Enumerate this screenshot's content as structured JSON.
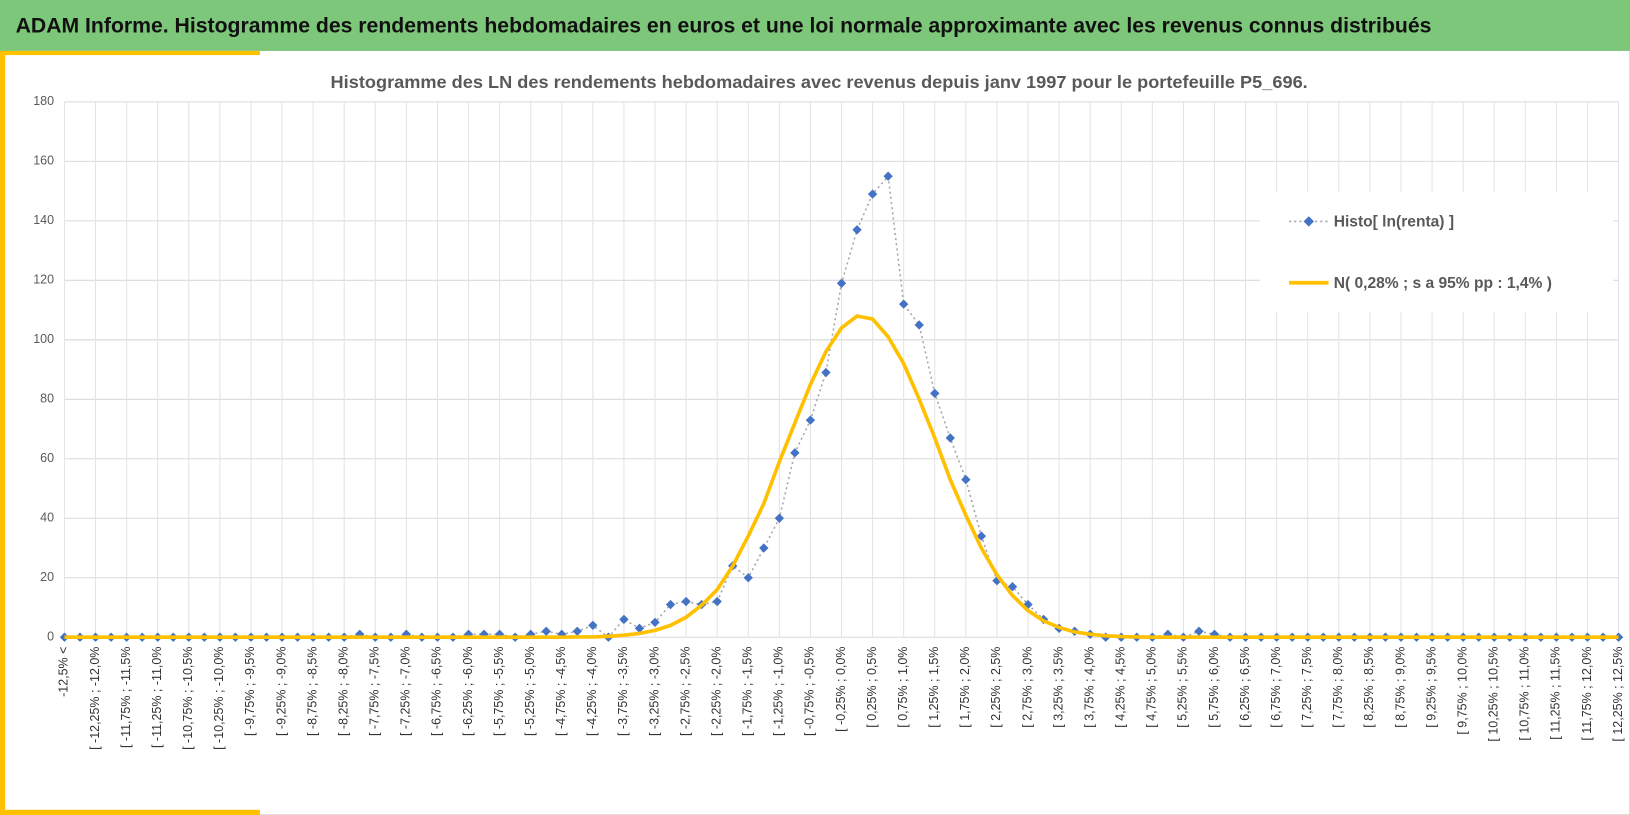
{
  "header": {
    "title": "ADAM Informe. Histogramme des rendements hebdomadaires en euros et une loi normale approximante avec les revenus connus distribués"
  },
  "chart_data": {
    "type": "line",
    "title": "Histogramme des LN des rendements hebdomadaires avec revenus depuis janv 1997 pour le portefeuille P5_696.",
    "categories": [
      "-12,5% <",
      null,
      "[ -12,25% ; -12,0%",
      null,
      "[ -11,75% ; -11,5%",
      null,
      "[ -11,25% ; -11,0%",
      null,
      "[ -10,75% ; -10,5%",
      null,
      "[ -10,25% ; -10,0%",
      null,
      "[ -9,75% ; -9,5%",
      null,
      "[ -9,25% ; -9,0%",
      null,
      "[ -8,75% ; -8,5%",
      null,
      "[ -8,25% ; -8,0%",
      null,
      "[ -7,75% ; -7,5%",
      null,
      "[ -7,25% ; -7,0%",
      null,
      "[ -6,75% ; -6,5%",
      null,
      "[ -6,25% ; -6,0%",
      null,
      "[ -5,75% ; -5,5%",
      null,
      "[ -5,25% ; -5,0%",
      null,
      "[ -4,75% ; -4,5%",
      null,
      "[ -4,25% ; -4,0%",
      null,
      "[ -3,75% ; -3,5%",
      null,
      "[ -3,25% ; -3,0%",
      null,
      "[ -2,75% ; -2,5%",
      null,
      "[ -2,25% ; -2,0%",
      null,
      "[ -1,75% ; -1,5%",
      null,
      "[ -1,25% ; -1,0%",
      null,
      "[ -0,75% ; -0,5%",
      null,
      "[ -0,25% ; 0,0%",
      null,
      "[ 0,25% ; 0,5%",
      null,
      "[ 0,75% ; 1,0%",
      null,
      "[ 1,25% ; 1,5%",
      null,
      "[ 1,75% ; 2,0%",
      null,
      "[ 2,25% ; 2,5%",
      null,
      "[ 2,75% ; 3,0%",
      null,
      "[ 3,25% ; 3,5%",
      null,
      "[ 3,75% ; 4,0%",
      null,
      "[ 4,25% ; 4,5%",
      null,
      "[ 4,75% ; 5,0%",
      null,
      "[ 5,25% ; 5,5%",
      null,
      "[ 5,75% ; 6,0%",
      null,
      "[ 6,25% ; 6,5%",
      null,
      "[ 6,75% ; 7,0%",
      null,
      "[ 7,25% ; 7,5%",
      null,
      "[ 7,75% ; 8,0%",
      null,
      "[ 8,25% ; 8,5%",
      null,
      "[ 8,75% ; 9,0%",
      null,
      "[ 9,25% ; 9,5%",
      null,
      "[ 9,75% ; 10,0%",
      null,
      "[ 10,25% ; 10,5%",
      null,
      "[ 10,75% ; 11,0%",
      null,
      "[ 11,25% ; 11,5%",
      null,
      "[ 11,75% ; 12,0%",
      null,
      "[ 12,25% ; 12,5%"
    ],
    "series": [
      {
        "name": "Histo[ ln(renta) ]",
        "color": "#4472c4",
        "line_color": "#a6a6a6",
        "marker": "diamond",
        "values": [
          0,
          0,
          0,
          0,
          0,
          0,
          0,
          0,
          0,
          0,
          0,
          0,
          0,
          0,
          0,
          0,
          0,
          0,
          0,
          1,
          0,
          0,
          1,
          0,
          0,
          0,
          1,
          1,
          1,
          0,
          1,
          2,
          1,
          2,
          4,
          0,
          6,
          3,
          5,
          11,
          12,
          11,
          12,
          24,
          20,
          30,
          40,
          62,
          73,
          89,
          119,
          137,
          149,
          155,
          112,
          105,
          82,
          67,
          53,
          34,
          19,
          17,
          11,
          6,
          3,
          2,
          1,
          0,
          0,
          0,
          0,
          1,
          0,
          2,
          1,
          0,
          0,
          0,
          0,
          0,
          0,
          0,
          0,
          0,
          0,
          0,
          0,
          0,
          0,
          0,
          0,
          0,
          0,
          0,
          0,
          0,
          0,
          0,
          0,
          0,
          0
        ]
      },
      {
        "name": "N( 0,28% ; s a 95% pp : 1,4% )",
        "color": "#ffc000",
        "values": [
          0,
          0,
          0,
          0,
          0,
          0,
          0,
          0,
          0,
          0,
          0,
          0,
          0,
          0,
          0,
          0,
          0,
          0,
          0,
          0,
          0,
          0,
          0,
          0,
          0,
          0,
          0,
          0,
          0,
          0,
          0,
          0,
          0,
          0.1,
          0.1,
          0.3,
          0.7,
          1.3,
          2.3,
          4,
          6.7,
          10.8,
          16,
          24,
          34,
          45,
          59,
          72,
          85,
          96,
          104,
          108,
          107,
          101,
          92,
          80,
          67,
          53,
          41,
          30,
          21,
          14,
          9,
          5.5,
          3.3,
          1.8,
          1,
          0.5,
          0.2,
          0.1,
          0,
          0,
          0,
          0,
          0,
          0,
          0,
          0,
          0,
          0,
          0,
          0,
          0,
          0,
          0,
          0,
          0,
          0,
          0,
          0,
          0,
          0,
          0,
          0,
          0,
          0,
          0,
          0,
          0,
          0,
          0
        ]
      }
    ],
    "ylim": [
      0,
      180
    ],
    "yticks": [
      0,
      20,
      40,
      60,
      80,
      100,
      120,
      140,
      160,
      180
    ],
    "grid": true,
    "legend": "right"
  }
}
